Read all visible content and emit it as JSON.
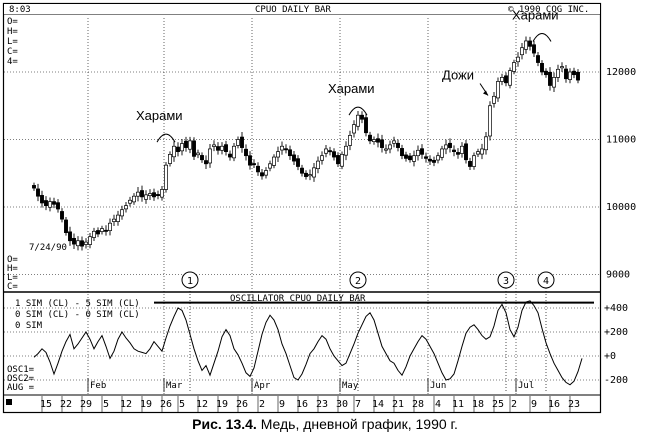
{
  "chart_data": {
    "type": "candlestick",
    "header": {
      "time": "8:03",
      "title": "CPUO DAILY BAR",
      "copyright": "© 1990 CQG INC."
    },
    "left_labels_top": [
      "O=",
      "H=",
      "L=",
      "C=",
      "4="
    ],
    "left_labels_mid": [
      "O=",
      "H=",
      "L=",
      "C="
    ],
    "price_axis": {
      "ticks": [
        9000,
        10000,
        11000,
        12000
      ],
      "range": [
        8800,
        12800
      ]
    },
    "start_label": "7/24/90",
    "annotations": [
      {
        "label": "Харами",
        "day": 33,
        "price": 11080
      },
      {
        "label": "Харами",
        "day": 81,
        "price": 11480
      },
      {
        "label": "Дожи",
        "day": 114,
        "price": 11800
      },
      {
        "label": "Харами",
        "day": 127,
        "price": 12570
      }
    ],
    "oscillator": {
      "title": "OSCILLATOR CPUO DAILY BAR",
      "legend": [
        "1 SIM (CL) - 5 SIM (CL)",
        "0 SIM (CL) - 0 SIM (CL)",
        "0 SIM"
      ],
      "side_labels": [
        "OSC1=",
        "OSC2=",
        "AUG ="
      ],
      "ticks": [
        {
          "value": 400,
          "label": "+400"
        },
        {
          "value": 200,
          "label": "+200"
        },
        {
          "value": 0,
          "label": "+0"
        },
        {
          "value": -200,
          "label": "-200"
        }
      ],
      "markers": [
        {
          "n": "1",
          "day": 39
        },
        {
          "n": "2",
          "day": 81
        },
        {
          "n": "3",
          "day": 118
        },
        {
          "n": "4",
          "day": 128
        }
      ],
      "values": [
        -10,
        20,
        60,
        30,
        -50,
        -150,
        -60,
        40,
        120,
        180,
        60,
        100,
        150,
        200,
        140,
        60,
        120,
        170,
        80,
        -20,
        40,
        140,
        200,
        150,
        110,
        60,
        40,
        30,
        20,
        60,
        120,
        80,
        40,
        150,
        250,
        330,
        400,
        380,
        300,
        180,
        60,
        -40,
        -120,
        -80,
        -160,
        -60,
        40,
        160,
        220,
        170,
        60,
        10,
        -60,
        -140,
        -170,
        -100,
        40,
        180,
        280,
        340,
        300,
        220,
        100,
        20,
        -80,
        -180,
        -200,
        -150,
        -70,
        20,
        60,
        120,
        170,
        140,
        60,
        0,
        -40,
        -80,
        -60,
        20,
        100,
        190,
        260,
        330,
        360,
        300,
        190,
        80,
        20,
        -40,
        -60,
        -120,
        -160,
        -90,
        0,
        60,
        120,
        170,
        140,
        80,
        20,
        -60,
        -140,
        -200,
        -190,
        -150,
        -40,
        80,
        190,
        240,
        260,
        220,
        170,
        140,
        160,
        250,
        380,
        430,
        360,
        220,
        160,
        240,
        380,
        450,
        460,
        420,
        360,
        230,
        110,
        20,
        -60,
        -120,
        -180,
        -220,
        -240,
        -210,
        -130,
        -20
      ]
    },
    "months": [
      {
        "label": "Feb",
        "day": 14
      },
      {
        "label": "Mar",
        "day": 33
      },
      {
        "label": "Apr",
        "day": 55
      },
      {
        "label": "May",
        "day": 77
      },
      {
        "label": "Jun",
        "day": 99
      },
      {
        "label": "Jul",
        "day": 121
      }
    ],
    "date_ticks": [
      {
        "label": "15",
        "day": 3
      },
      {
        "label": "22",
        "day": 8
      },
      {
        "label": "29",
        "day": 13
      },
      {
        "label": "5",
        "day": 18
      },
      {
        "label": "12",
        "day": 23
      },
      {
        "label": "19",
        "day": 28
      },
      {
        "label": "26",
        "day": 33
      },
      {
        "label": "5",
        "day": 37
      },
      {
        "label": "12",
        "day": 42
      },
      {
        "label": "19",
        "day": 47
      },
      {
        "label": "26",
        "day": 52
      },
      {
        "label": "2",
        "day": 57
      },
      {
        "label": "9",
        "day": 62
      },
      {
        "label": "16",
        "day": 67
      },
      {
        "label": "23",
        "day": 72
      },
      {
        "label": "30",
        "day": 77
      },
      {
        "label": "7",
        "day": 81
      },
      {
        "label": "14",
        "day": 86
      },
      {
        "label": "21",
        "day": 91
      },
      {
        "label": "28",
        "day": 96
      },
      {
        "label": "4",
        "day": 101
      },
      {
        "label": "11",
        "day": 106
      },
      {
        "label": "18",
        "day": 111
      },
      {
        "label": "25",
        "day": 116
      },
      {
        "label": "2",
        "day": 120
      },
      {
        "label": "9",
        "day": 125
      },
      {
        "label": "16",
        "day": 130
      },
      {
        "label": "23",
        "day": 135
      }
    ],
    "closes": [
      10280,
      10160,
      10060,
      10020,
      10080,
      10040,
      9970,
      9820,
      9620,
      9500,
      9450,
      9500,
      9420,
      9480,
      9560,
      9640,
      9600,
      9680,
      9650,
      9760,
      9820,
      9880,
      9960,
      10020,
      10100,
      10160,
      10220,
      10150,
      10180,
      10200,
      10150,
      10170,
      10260,
      10620,
      10780,
      10900,
      10820,
      10940,
      10880,
      10980,
      10750,
      10800,
      10700,
      10640,
      10860,
      10920,
      10840,
      10900,
      10820,
      10740,
      10900,
      11000,
      10880,
      10760,
      10620,
      10640,
      10520,
      10460,
      10540,
      10640,
      10740,
      10820,
      10900,
      10860,
      10760,
      10680,
      10600,
      10500,
      10450,
      10480,
      10580,
      10680,
      10760,
      10860,
      10820,
      10740,
      10640,
      10780,
      10900,
      11060,
      11220,
      11360,
      11300,
      11100,
      10980,
      11000,
      10960,
      10880,
      10860,
      10920,
      10980,
      10880,
      10760,
      10720,
      10700,
      10760,
      10840,
      10780,
      10720,
      10680,
      10660,
      10760,
      10860,
      10920,
      10880,
      10820,
      10780,
      10900,
      10700,
      10600,
      10760,
      10820,
      10860,
      11040,
      11500,
      11640,
      11860,
      11920,
      11840,
      12020,
      12140,
      12220,
      12360,
      12460,
      12380,
      12280,
      12140,
      12000,
      11960,
      11800,
      11920,
      12040,
      12080,
      11900,
      12000,
      11960,
      11880
    ]
  },
  "caption": {
    "label": "Рис. 13.4.",
    "text": "Медь, дневной график, 1990 г."
  }
}
